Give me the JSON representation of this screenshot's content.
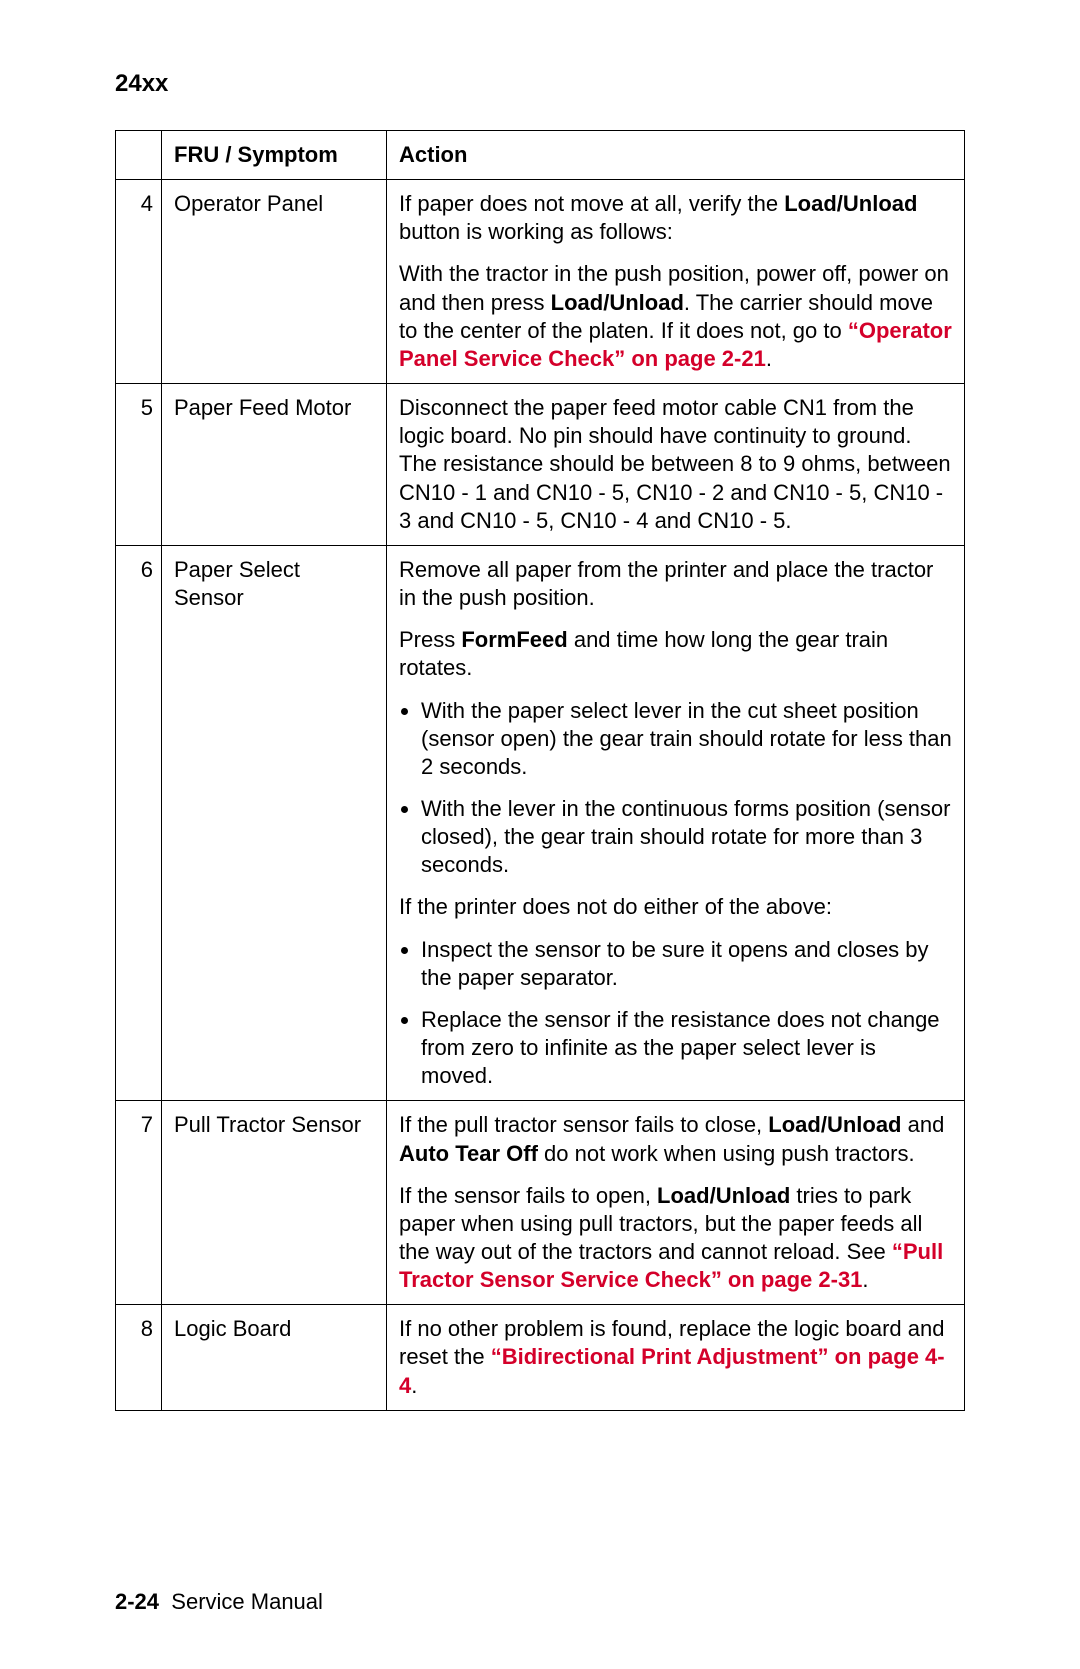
{
  "header": {
    "title": "24xx"
  },
  "table": {
    "head": {
      "col1": "",
      "col2": "FRU / Symptom",
      "col3": "Action"
    },
    "rows": [
      {
        "num": "4",
        "fru": "Operator Panel",
        "p1_a": "If paper does not move at all, verify the ",
        "p1_b": "Load/Unload",
        "p1_c": " button is working as follows:",
        "p2_a": "With the tractor in the push position, power off, power on and then press ",
        "p2_b": "Load/Unload",
        "p2_c": ". The carrier should move to the center of the platen. If it does not, go to ",
        "p2_link": "“Operator Panel Service Check” on page 2-21",
        "p2_d": "."
      },
      {
        "num": "5",
        "fru": "Paper Feed Motor",
        "p1": "Disconnect the paper feed motor cable CN1 from the logic board. No pin should have continuity to ground. The resistance should be between 8 to 9 ohms, between CN10 - 1 and CN10 - 5, CN10 - 2 and CN10 - 5, CN10 - 3 and CN10 - 5, CN10 - 4 and CN10 - 5."
      },
      {
        "num": "6",
        "fru": "Paper Select Sensor",
        "p1": "Remove all paper from the printer and place the tractor in the push position.",
        "p2_a": "Press ",
        "p2_b": "FormFeed",
        "p2_c": " and time how long the gear train rotates.",
        "b1": "With the paper select lever in the cut sheet position (sensor open) the gear train should rotate for less than 2 seconds.",
        "b2": "With the lever in the continuous forms position (sensor closed), the gear train should rotate for more than 3 seconds.",
        "p3": "If the printer does not do either of the above:",
        "b3": "Inspect the sensor to be sure it opens and closes by the paper separator.",
        "b4": "Replace the sensor if the resistance does not change from zero to infinite as the paper select lever is moved."
      },
      {
        "num": "7",
        "fru": "Pull Tractor Sensor",
        "p1_a": "If the pull tractor sensor fails to close, ",
        "p1_b": "Load/Unload",
        "p1_c": " and ",
        "p1_d": "Auto Tear Off",
        "p1_e": " do not work when using push tractors.",
        "p2_a": "If the sensor fails to open, ",
        "p2_b": "Load/Unload",
        "p2_c": " tries to park paper when using pull tractors, but the paper feeds all the way out of the tractors and cannot reload. See ",
        "p2_link": "“Pull Tractor Sensor Service Check” on page 2-31",
        "p2_d": "."
      },
      {
        "num": "8",
        "fru": "Logic Board",
        "p1_a": "If no other problem is found, replace the logic board and reset the ",
        "p1_link": "“Bidirectional Print Adjustment” on page 4-4",
        "p1_b": "."
      }
    ]
  },
  "footer": {
    "pagenum": "2-24",
    "label": "Service Manual"
  }
}
